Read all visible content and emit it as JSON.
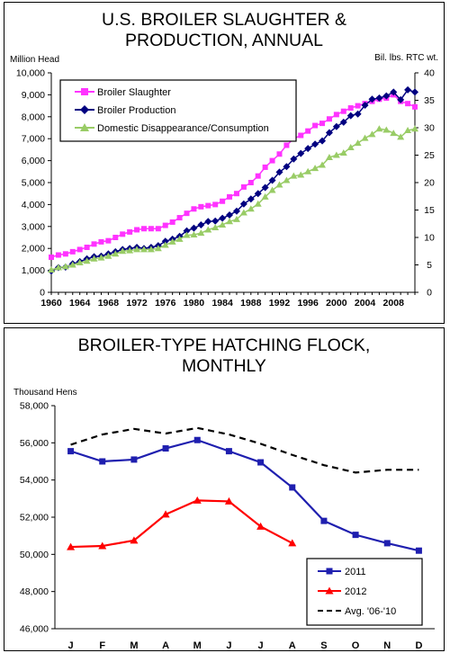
{
  "chart_data": [
    {
      "type": "line",
      "title_line1": "U.S. BROILER SLAUGHTER &",
      "title_line2": "PRODUCTION, ANNUAL",
      "ylabel_left": "Million Head",
      "ylabel_right": "Bil. lbs. RTC wt.",
      "ylim_left": [
        0,
        10000
      ],
      "ylim_right": [
        0,
        40
      ],
      "yticks_left": [
        "0",
        "1,000",
        "2,000",
        "3,000",
        "4,000",
        "5,000",
        "6,000",
        "7,000",
        "8,000",
        "9,000",
        "10,000"
      ],
      "yticks_right": [
        "0",
        "5",
        "10",
        "15",
        "20",
        "25",
        "30",
        "35",
        "40"
      ],
      "xlim": [
        1960,
        2011
      ],
      "xticks": [
        "1960",
        "1964",
        "1968",
        "1972",
        "1976",
        "1980",
        "1984",
        "1988",
        "1992",
        "1996",
        "2000",
        "2004",
        "2008"
      ],
      "grid": false,
      "legend_position": "top-left",
      "x": [
        1960,
        1961,
        1962,
        1963,
        1964,
        1965,
        1966,
        1967,
        1968,
        1969,
        1970,
        1971,
        1972,
        1973,
        1974,
        1975,
        1976,
        1977,
        1978,
        1979,
        1980,
        1981,
        1982,
        1983,
        1984,
        1985,
        1986,
        1987,
        1988,
        1989,
        1990,
        1991,
        1992,
        1993,
        1994,
        1995,
        1996,
        1997,
        1998,
        1999,
        2000,
        2001,
        2002,
        2003,
        2004,
        2005,
        2006,
        2007,
        2008,
        2009,
        2010,
        2011
      ],
      "series": [
        {
          "name": "Broiler Slaughter",
          "axis": "left",
          "color": "#ff33ff",
          "marker": "square",
          "values": [
            1600,
            1700,
            1750,
            1850,
            1950,
            2050,
            2200,
            2300,
            2350,
            2500,
            2650,
            2750,
            2850,
            2900,
            2900,
            2900,
            3050,
            3200,
            3400,
            3600,
            3800,
            3900,
            3950,
            4000,
            4150,
            4350,
            4500,
            4800,
            5000,
            5300,
            5700,
            6000,
            6300,
            6700,
            7000,
            7150,
            7350,
            7600,
            7700,
            7900,
            8100,
            8250,
            8400,
            8500,
            8600,
            8700,
            8800,
            8850,
            9000,
            8700,
            8600,
            8450
          ]
        },
        {
          "name": "Broiler Production",
          "axis": "right",
          "color": "#000080",
          "marker": "diamond",
          "values": [
            3.9,
            4.5,
            4.6,
            5.2,
            5.6,
            6.1,
            6.5,
            6.6,
            7.0,
            7.4,
            7.8,
            8.0,
            8.2,
            8.0,
            8.2,
            8.5,
            9.3,
            9.7,
            10.2,
            11.2,
            11.7,
            12.3,
            12.9,
            13.0,
            13.5,
            14.1,
            14.8,
            16.1,
            17.0,
            18.0,
            19.1,
            20.4,
            21.9,
            22.9,
            24.3,
            25.3,
            26.2,
            27.0,
            27.6,
            29.1,
            30.2,
            31.0,
            32.2,
            32.5,
            34.1,
            35.2,
            35.4,
            35.8,
            36.5,
            35.1,
            36.9,
            36.5
          ]
        },
        {
          "name": "Domestic Disappearance/Consumption",
          "axis": "right",
          "color": "#99cc66",
          "marker": "triangle",
          "values": [
            4.1,
            4.5,
            4.7,
            5.0,
            5.4,
            5.7,
            6.1,
            6.3,
            6.6,
            7.0,
            7.5,
            7.6,
            7.8,
            7.8,
            7.8,
            8.0,
            8.6,
            9.2,
            9.7,
            10.4,
            10.5,
            10.8,
            11.4,
            11.8,
            12.3,
            12.9,
            13.3,
            14.5,
            15.2,
            16.1,
            17.4,
            18.6,
            19.6,
            20.4,
            21.2,
            21.4,
            22.0,
            22.6,
            23.2,
            24.6,
            25.0,
            25.4,
            26.4,
            27.2,
            28.1,
            28.8,
            29.8,
            29.6,
            29.0,
            28.3,
            29.5,
            29.8
          ]
        }
      ]
    },
    {
      "type": "line",
      "title_line1": "BROILER-TYPE HATCHING FLOCK,",
      "title_line2": "MONTHLY",
      "ylabel": "Thousand Hens",
      "ylim": [
        46000,
        58000
      ],
      "yticks": [
        "46,000",
        "48,000",
        "50,000",
        "52,000",
        "54,000",
        "56,000",
        "58,000"
      ],
      "categories": [
        "J",
        "F",
        "M",
        "A",
        "M",
        "J",
        "J",
        "A",
        "S",
        "O",
        "N",
        "D"
      ],
      "grid": false,
      "legend_position": "bottom-right",
      "series": [
        {
          "name": "2011",
          "color": "#1f1faf",
          "marker": "square",
          "dashed": false,
          "values": [
            55550,
            55000,
            55100,
            55700,
            56150,
            55550,
            54950,
            53600,
            51800,
            51050,
            50600,
            50200
          ]
        },
        {
          "name": "2012",
          "color": "#ff0000",
          "marker": "triangle",
          "dashed": false,
          "values": [
            50400,
            50450,
            50750,
            52150,
            52900,
            52850,
            51500,
            50600,
            null,
            null,
            null,
            null
          ]
        },
        {
          "name": "Avg. '06-'10",
          "color": "#000000",
          "marker": "none",
          "dashed": true,
          "values": [
            55900,
            56450,
            56750,
            56500,
            56800,
            56450,
            55950,
            55350,
            54800,
            54400,
            54550,
            54550
          ]
        }
      ]
    }
  ]
}
